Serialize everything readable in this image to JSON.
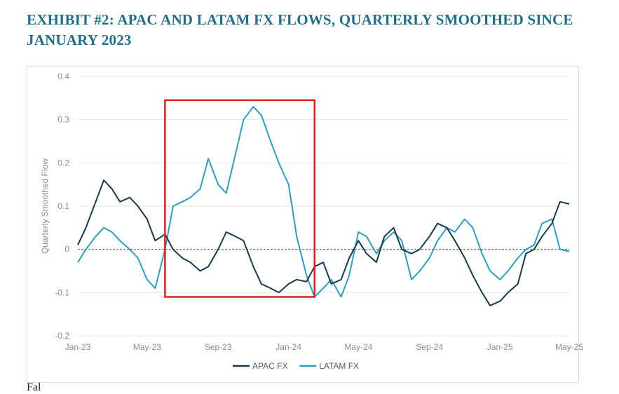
{
  "title": "EXHIBIT #2: APAC AND LATAM FX FLOWS, QUARTERLY SMOOTHED SINCE JANUARY 2023",
  "footer_text": "Fal",
  "chart_data": {
    "type": "line",
    "ylabel": "Quarterly Smoothed Flow",
    "xlabel": "",
    "ylim": [
      -0.2,
      0.4
    ],
    "yticks": [
      -0.2,
      -0.1,
      0,
      0.1,
      0.2,
      0.3,
      0.4
    ],
    "ytick_labels": [
      "-0.2",
      "-0.1",
      "0",
      "0.1",
      "0.2",
      "0.3",
      "0.4"
    ],
    "xticks": [
      "2023-01-01",
      "2023-05-01",
      "2023-09-01",
      "2024-01-01",
      "2024-05-01",
      "2024-09-01",
      "2025-01-01",
      "2025-05-01"
    ],
    "xtick_labels": [
      "Jan-23",
      "May-23",
      "Sep-23",
      "Jan-24",
      "May-24",
      "Sep-24",
      "Jan-25",
      "May-25"
    ],
    "x_range": [
      "2023-01-01",
      "2025-05-01"
    ],
    "zero_line": "dashed",
    "legend_position": "bottom-center",
    "highlight_box": {
      "x_start": "2023-06-01",
      "x_end": "2024-02-15",
      "y_min": -0.11,
      "y_max": 0.345,
      "color": "#e02020"
    },
    "series": [
      {
        "name": "APAC FX",
        "color": "#17394d",
        "points": [
          [
            "2023-01-01",
            0.01
          ],
          [
            "2023-01-15",
            0.05
          ],
          [
            "2023-02-01",
            0.11
          ],
          [
            "2023-02-15",
            0.16
          ],
          [
            "2023-03-01",
            0.14
          ],
          [
            "2023-03-15",
            0.11
          ],
          [
            "2023-04-01",
            0.12
          ],
          [
            "2023-04-15",
            0.1
          ],
          [
            "2023-05-01",
            0.07
          ],
          [
            "2023-05-15",
            0.02
          ],
          [
            "2023-06-01",
            0.035
          ],
          [
            "2023-06-15",
            0.0
          ],
          [
            "2023-07-01",
            -0.02
          ],
          [
            "2023-07-15",
            -0.03
          ],
          [
            "2023-08-01",
            -0.05
          ],
          [
            "2023-08-15",
            -0.04
          ],
          [
            "2023-09-01",
            0.0
          ],
          [
            "2023-09-15",
            0.04
          ],
          [
            "2023-10-01",
            0.03
          ],
          [
            "2023-10-15",
            0.02
          ],
          [
            "2023-11-01",
            -0.04
          ],
          [
            "2023-11-15",
            -0.08
          ],
          [
            "2023-12-01",
            -0.09
          ],
          [
            "2023-12-15",
            -0.1
          ],
          [
            "2024-01-01",
            -0.08
          ],
          [
            "2024-01-15",
            -0.07
          ],
          [
            "2024-02-01",
            -0.075
          ],
          [
            "2024-02-15",
            -0.04
          ],
          [
            "2024-03-01",
            -0.03
          ],
          [
            "2024-03-15",
            -0.08
          ],
          [
            "2024-04-01",
            -0.07
          ],
          [
            "2024-04-15",
            -0.02
          ],
          [
            "2024-05-01",
            0.02
          ],
          [
            "2024-05-15",
            -0.01
          ],
          [
            "2024-06-01",
            -0.03
          ],
          [
            "2024-06-15",
            0.03
          ],
          [
            "2024-07-01",
            0.05
          ],
          [
            "2024-07-15",
            0.0
          ],
          [
            "2024-08-01",
            -0.01
          ],
          [
            "2024-08-15",
            0.0
          ],
          [
            "2024-09-01",
            0.03
          ],
          [
            "2024-09-15",
            0.06
          ],
          [
            "2024-10-01",
            0.05
          ],
          [
            "2024-10-15",
            0.02
          ],
          [
            "2024-11-01",
            -0.02
          ],
          [
            "2024-11-15",
            -0.06
          ],
          [
            "2024-12-01",
            -0.1
          ],
          [
            "2024-12-15",
            -0.13
          ],
          [
            "2025-01-01",
            -0.12
          ],
          [
            "2025-01-15",
            -0.1
          ],
          [
            "2025-02-01",
            -0.08
          ],
          [
            "2025-02-15",
            -0.01
          ],
          [
            "2025-03-01",
            0.0
          ],
          [
            "2025-03-15",
            0.03
          ],
          [
            "2025-04-01",
            0.06
          ],
          [
            "2025-04-15",
            0.11
          ],
          [
            "2025-05-01",
            0.105
          ]
        ]
      },
      {
        "name": "LATAM FX",
        "color": "#2a9fc0",
        "points": [
          [
            "2023-01-01",
            -0.03
          ],
          [
            "2023-01-15",
            0.0
          ],
          [
            "2023-02-01",
            0.03
          ],
          [
            "2023-02-15",
            0.05
          ],
          [
            "2023-03-01",
            0.04
          ],
          [
            "2023-03-15",
            0.02
          ],
          [
            "2023-04-01",
            0.0
          ],
          [
            "2023-04-15",
            -0.02
          ],
          [
            "2023-05-01",
            -0.07
          ],
          [
            "2023-05-15",
            -0.09
          ],
          [
            "2023-06-01",
            0.0
          ],
          [
            "2023-06-15",
            0.1
          ],
          [
            "2023-07-01",
            0.11
          ],
          [
            "2023-07-15",
            0.12
          ],
          [
            "2023-08-01",
            0.14
          ],
          [
            "2023-08-15",
            0.21
          ],
          [
            "2023-09-01",
            0.15
          ],
          [
            "2023-09-15",
            0.13
          ],
          [
            "2023-10-01",
            0.22
          ],
          [
            "2023-10-15",
            0.3
          ],
          [
            "2023-11-01",
            0.33
          ],
          [
            "2023-11-15",
            0.31
          ],
          [
            "2023-12-01",
            0.25
          ],
          [
            "2023-12-15",
            0.2
          ],
          [
            "2024-01-01",
            0.15
          ],
          [
            "2024-01-15",
            0.03
          ],
          [
            "2024-02-01",
            -0.06
          ],
          [
            "2024-02-15",
            -0.11
          ],
          [
            "2024-03-01",
            -0.09
          ],
          [
            "2024-03-15",
            -0.07
          ],
          [
            "2024-04-01",
            -0.11
          ],
          [
            "2024-04-15",
            -0.06
          ],
          [
            "2024-05-01",
            0.04
          ],
          [
            "2024-05-15",
            0.03
          ],
          [
            "2024-06-01",
            -0.01
          ],
          [
            "2024-06-15",
            0.02
          ],
          [
            "2024-07-01",
            0.04
          ],
          [
            "2024-07-15",
            0.02
          ],
          [
            "2024-08-01",
            -0.07
          ],
          [
            "2024-08-15",
            -0.05
          ],
          [
            "2024-09-01",
            -0.02
          ],
          [
            "2024-09-15",
            0.02
          ],
          [
            "2024-10-01",
            0.05
          ],
          [
            "2024-10-15",
            0.04
          ],
          [
            "2024-11-01",
            0.07
          ],
          [
            "2024-11-15",
            0.05
          ],
          [
            "2024-12-01",
            -0.01
          ],
          [
            "2024-12-15",
            -0.05
          ],
          [
            "2025-01-01",
            -0.07
          ],
          [
            "2025-01-15",
            -0.05
          ],
          [
            "2025-02-01",
            -0.02
          ],
          [
            "2025-02-15",
            0.0
          ],
          [
            "2025-03-01",
            0.01
          ],
          [
            "2025-03-15",
            0.06
          ],
          [
            "2025-04-01",
            0.07
          ],
          [
            "2025-04-15",
            0.0
          ],
          [
            "2025-05-01",
            -0.005
          ]
        ]
      }
    ]
  }
}
